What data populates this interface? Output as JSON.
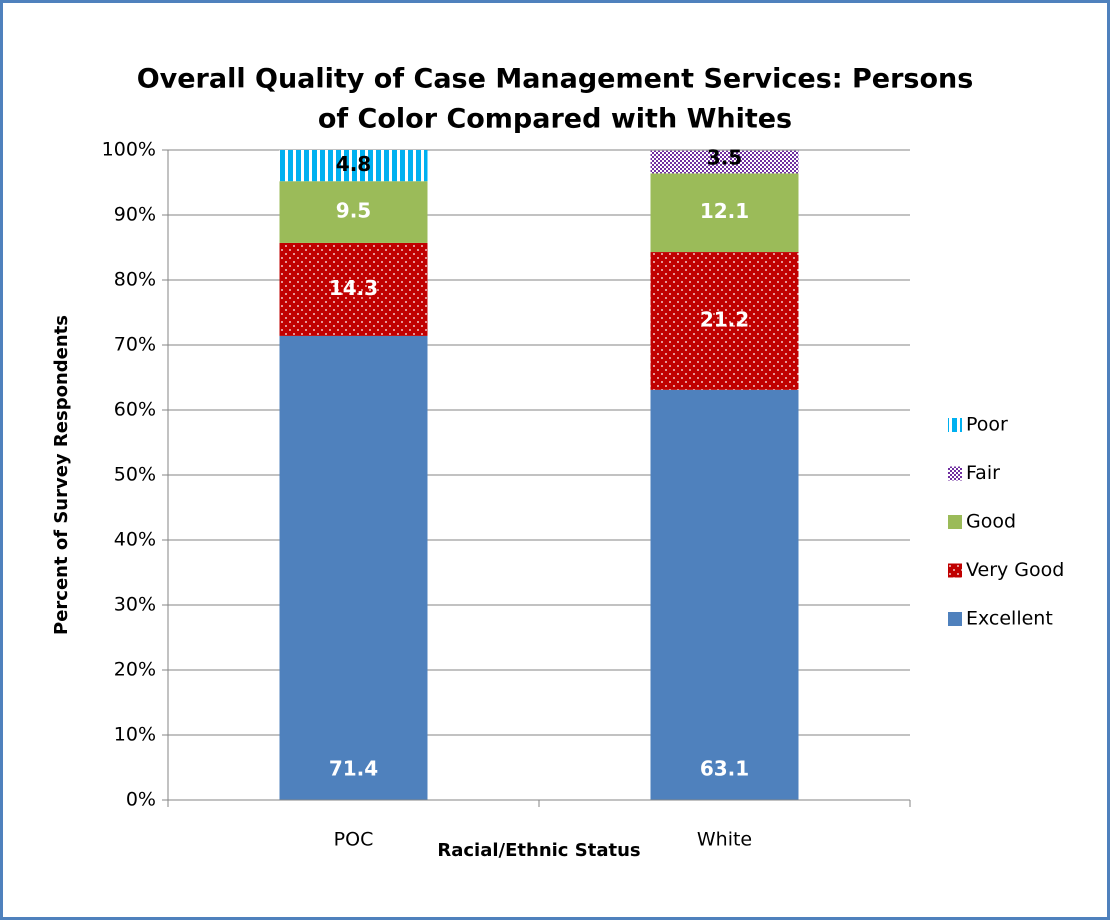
{
  "chart_data": {
    "type": "stacked_bar",
    "title": [
      "Overall Quality of Case Management Services:  Persons",
      "of Color Compared with Whites"
    ],
    "y_label": "Percent of Survey Respondents",
    "x_label": "Racial/Ethnic Status",
    "categories": [
      "POC",
      "White"
    ],
    "series": [
      {
        "name": "Excellent",
        "color": "#4f81bd",
        "pattern": "solid",
        "label_color": "#ffffff",
        "values": [
          71.4,
          63.1
        ]
      },
      {
        "name": "Very Good",
        "color": "#c00000",
        "pattern": "dots",
        "label_color": "#ffffff",
        "values": [
          14.3,
          21.2
        ]
      },
      {
        "name": "Good",
        "color": "#9bbb59",
        "pattern": "solid",
        "label_color": "#ffffff",
        "values": [
          9.5,
          12.1
        ]
      },
      {
        "name": "Fair",
        "color": "#7030a0",
        "pattern": "checker",
        "label_color": "#000000",
        "values": [
          null,
          3.5
        ]
      },
      {
        "name": "Poor",
        "color": "#00b0f0",
        "pattern": "stripes",
        "label_color": "#000000",
        "values": [
          4.8,
          null
        ]
      }
    ],
    "ylim": [
      0,
      100
    ],
    "yticks": [
      {
        "value": 0,
        "label": "0%"
      },
      {
        "value": 10,
        "label": "10%"
      },
      {
        "value": 20,
        "label": "20%"
      },
      {
        "value": 30,
        "label": "30%"
      },
      {
        "value": 40,
        "label": "40%"
      },
      {
        "value": 50,
        "label": "50%"
      },
      {
        "value": 60,
        "label": "60%"
      },
      {
        "value": 70,
        "label": "70%"
      },
      {
        "value": 80,
        "label": "80%"
      },
      {
        "value": 90,
        "label": "90%"
      },
      {
        "value": 100,
        "label": "100%"
      }
    ],
    "grid": true,
    "legend": "right"
  }
}
